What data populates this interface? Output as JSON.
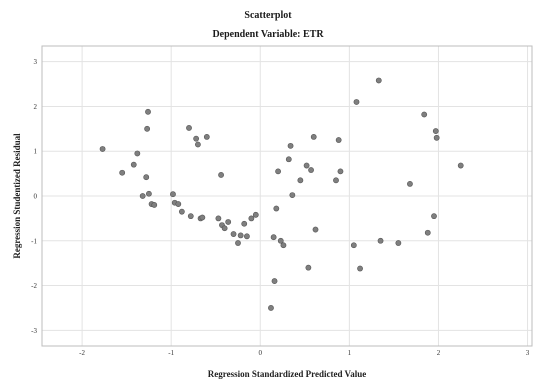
{
  "chart_data": {
    "type": "scatter",
    "title": "Scatterplot",
    "subtitle": "Dependent Variable: ETR",
    "xlabel": "Regression Standardized Predicted Value",
    "ylabel": "Regression Studentized Residual",
    "xlim": [
      -2.45,
      3.05
    ],
    "ylim": [
      -3.35,
      3.35
    ],
    "xticks": [
      -2,
      -1,
      0,
      1,
      2,
      3
    ],
    "yticks": [
      -3,
      -2,
      -1,
      0,
      1,
      2,
      3
    ],
    "grid": true,
    "colors": {
      "points": "#7f7f7f",
      "point_stroke": "#555555",
      "grid": "#e3e3e3",
      "frame": "#bdbdbd"
    },
    "series": [
      {
        "points": [
          [
            -1.77,
            1.05
          ],
          [
            -1.55,
            0.52
          ],
          [
            -1.42,
            0.7
          ],
          [
            -1.38,
            0.95
          ],
          [
            -1.32,
            0.0
          ],
          [
            -1.28,
            0.42
          ],
          [
            -1.27,
            1.5
          ],
          [
            -1.26,
            1.88
          ],
          [
            -1.25,
            0.05
          ],
          [
            -1.22,
            -0.18
          ],
          [
            -1.19,
            -0.2
          ],
          [
            -0.98,
            0.04
          ],
          [
            -0.96,
            -0.15
          ],
          [
            -0.92,
            -0.18
          ],
          [
            -0.88,
            -0.35
          ],
          [
            -0.8,
            1.52
          ],
          [
            -0.78,
            -0.45
          ],
          [
            -0.72,
            1.28
          ],
          [
            -0.7,
            1.15
          ],
          [
            -0.67,
            -0.5
          ],
          [
            -0.65,
            -0.48
          ],
          [
            -0.6,
            1.32
          ],
          [
            -0.47,
            -0.5
          ],
          [
            -0.44,
            0.47
          ],
          [
            -0.43,
            -0.65
          ],
          [
            -0.4,
            -0.72
          ],
          [
            -0.36,
            -0.58
          ],
          [
            -0.3,
            -0.85
          ],
          [
            -0.25,
            -1.05
          ],
          [
            -0.22,
            -0.88
          ],
          [
            -0.18,
            -0.62
          ],
          [
            -0.15,
            -0.9
          ],
          [
            -0.1,
            -0.5
          ],
          [
            -0.05,
            -0.42
          ],
          [
            0.12,
            -2.5
          ],
          [
            0.15,
            -0.92
          ],
          [
            0.16,
            -1.9
          ],
          [
            0.18,
            -0.28
          ],
          [
            0.2,
            0.55
          ],
          [
            0.23,
            -1.0
          ],
          [
            0.26,
            -1.1
          ],
          [
            0.32,
            0.82
          ],
          [
            0.34,
            1.12
          ],
          [
            0.36,
            0.02
          ],
          [
            0.45,
            0.35
          ],
          [
            0.52,
            0.68
          ],
          [
            0.54,
            -1.6
          ],
          [
            0.57,
            0.58
          ],
          [
            0.6,
            1.32
          ],
          [
            0.62,
            -0.75
          ],
          [
            0.85,
            0.35
          ],
          [
            0.88,
            1.25
          ],
          [
            0.9,
            0.55
          ],
          [
            1.05,
            -1.1
          ],
          [
            1.08,
            2.1
          ],
          [
            1.12,
            -1.62
          ],
          [
            1.33,
            2.58
          ],
          [
            1.35,
            -1.0
          ],
          [
            1.55,
            -1.05
          ],
          [
            1.68,
            0.27
          ],
          [
            1.84,
            1.82
          ],
          [
            1.88,
            -0.82
          ],
          [
            1.95,
            -0.45
          ],
          [
            1.97,
            1.45
          ],
          [
            1.98,
            1.3
          ],
          [
            2.25,
            0.68
          ]
        ]
      }
    ]
  }
}
